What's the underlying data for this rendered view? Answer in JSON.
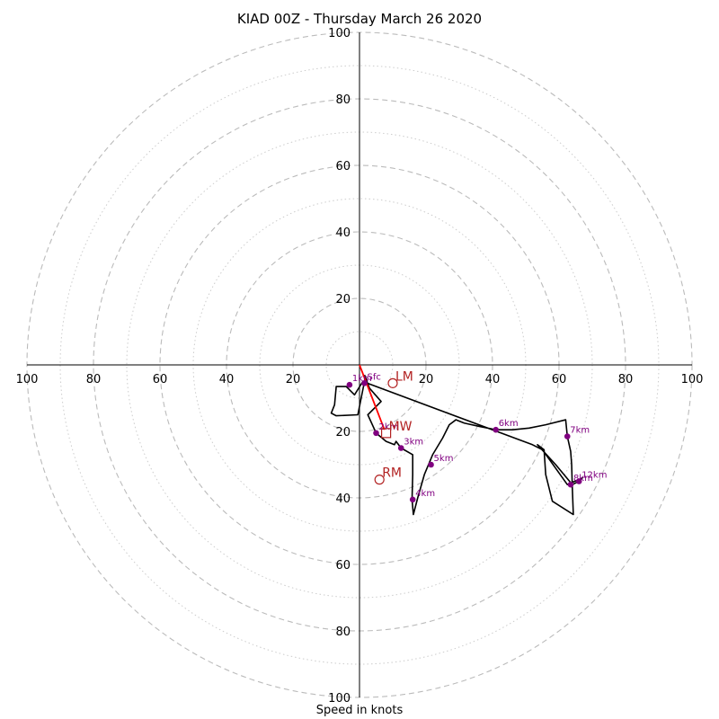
{
  "title": "KIAD 00Z - Thursday March 26 2020",
  "xlabel": "Speed in knots",
  "chart_data": {
    "type": "hodograph",
    "title": "KIAD 00Z - Thursday March 26 2020",
    "xlabel": "Speed in knots",
    "units": "knots",
    "xlim": [
      -100,
      100
    ],
    "ylim": [
      -100,
      100
    ],
    "rings_major": [
      20,
      40,
      60,
      80,
      100
    ],
    "rings_minor": [
      10,
      30,
      50,
      70,
      90
    ],
    "tick_labels": [
      "100",
      "80",
      "60",
      "40",
      "20"
    ],
    "trace": [
      [
        1.5,
        -3.0
      ],
      [
        3.0,
        -7.0
      ],
      [
        6.5,
        -11.0
      ],
      [
        2.5,
        -15.0
      ],
      [
        5.0,
        -20.5
      ],
      [
        8.0,
        -23.0
      ],
      [
        10.5,
        -24.0
      ],
      [
        11.0,
        -23.0
      ],
      [
        12.5,
        -25.0
      ],
      [
        16.0,
        -27.0
      ],
      [
        16.0,
        -33.0
      ],
      [
        15.8,
        -40.5
      ],
      [
        16.2,
        -45.0
      ],
      [
        17.5,
        -40.0
      ],
      [
        19.5,
        -33.0
      ],
      [
        22.0,
        -27.0
      ],
      [
        25.0,
        -22.0
      ],
      [
        27.0,
        -18.0
      ],
      [
        29.0,
        -16.5
      ],
      [
        31.5,
        -17.5
      ],
      [
        36.0,
        -18.5
      ],
      [
        41.0,
        -19.5
      ],
      [
        46.0,
        -19.5
      ],
      [
        51.0,
        -19.0
      ],
      [
        56.0,
        -18.0
      ],
      [
        62.0,
        -16.5
      ],
      [
        62.5,
        -21.5
      ],
      [
        63.5,
        -26.0
      ],
      [
        63.8,
        -30.0
      ],
      [
        64.0,
        -37.0
      ],
      [
        64.3,
        -45.0
      ],
      [
        58.0,
        -41.0
      ],
      [
        56.0,
        -33.0
      ],
      [
        55.5,
        -25.5
      ],
      [
        53.5,
        -24.0
      ],
      [
        59.0,
        -30.0
      ],
      [
        64.0,
        -36.0
      ],
      [
        66.0,
        -35.0
      ],
      [
        67.0,
        -34.0
      ],
      [
        62.5,
        -36.0
      ],
      [
        55.0,
        -25.5
      ],
      [
        52.0,
        -24.0
      ],
      [
        1.0,
        -5.0
      ],
      [
        -1.5,
        -9.0
      ],
      [
        -4.0,
        -6.5
      ],
      [
        -7.0,
        -6.5
      ],
      [
        -7.5,
        -12.0
      ],
      [
        -8.5,
        -14.5
      ],
      [
        -7.0,
        -15.3
      ],
      [
        -0.5,
        -15.0
      ],
      [
        1.5,
        -5.0
      ]
    ],
    "height_points": [
      {
        "label": "Sfc",
        "x": 1.5,
        "y": -5.5
      },
      {
        "label": "1km",
        "x": -3.0,
        "y": -6.0
      },
      {
        "label": "2km",
        "x": 5.0,
        "y": -20.5
      },
      {
        "label": "3km",
        "x": 12.5,
        "y": -25.0
      },
      {
        "label": "4km",
        "x": 16.0,
        "y": -40.5
      },
      {
        "label": "5km",
        "x": 21.5,
        "y": -30.0
      },
      {
        "label": "6km",
        "x": 41.0,
        "y": -19.5
      },
      {
        "label": "7km",
        "x": 62.5,
        "y": -21.5
      },
      {
        "label": "8km",
        "x": 63.5,
        "y": -36.0
      },
      {
        "label": "12km",
        "x": 66.0,
        "y": -35.0
      }
    ],
    "motion_points": [
      {
        "label": "LM",
        "x": 10.0,
        "y": -5.5,
        "marker": "circle"
      },
      {
        "label": "MW",
        "x": 8.0,
        "y": -20.5,
        "marker": "square"
      },
      {
        "label": "RM",
        "x": 6.0,
        "y": -34.5,
        "marker": "circle"
      }
    ],
    "vector": {
      "from": [
        0,
        0
      ],
      "to": [
        7.5,
        -19.5
      ]
    },
    "colors": {
      "trace": "#000000",
      "height_points": "#800080",
      "motion": "#b22222",
      "vector": "#ff0000",
      "rings": "#bbbbbb"
    }
  }
}
